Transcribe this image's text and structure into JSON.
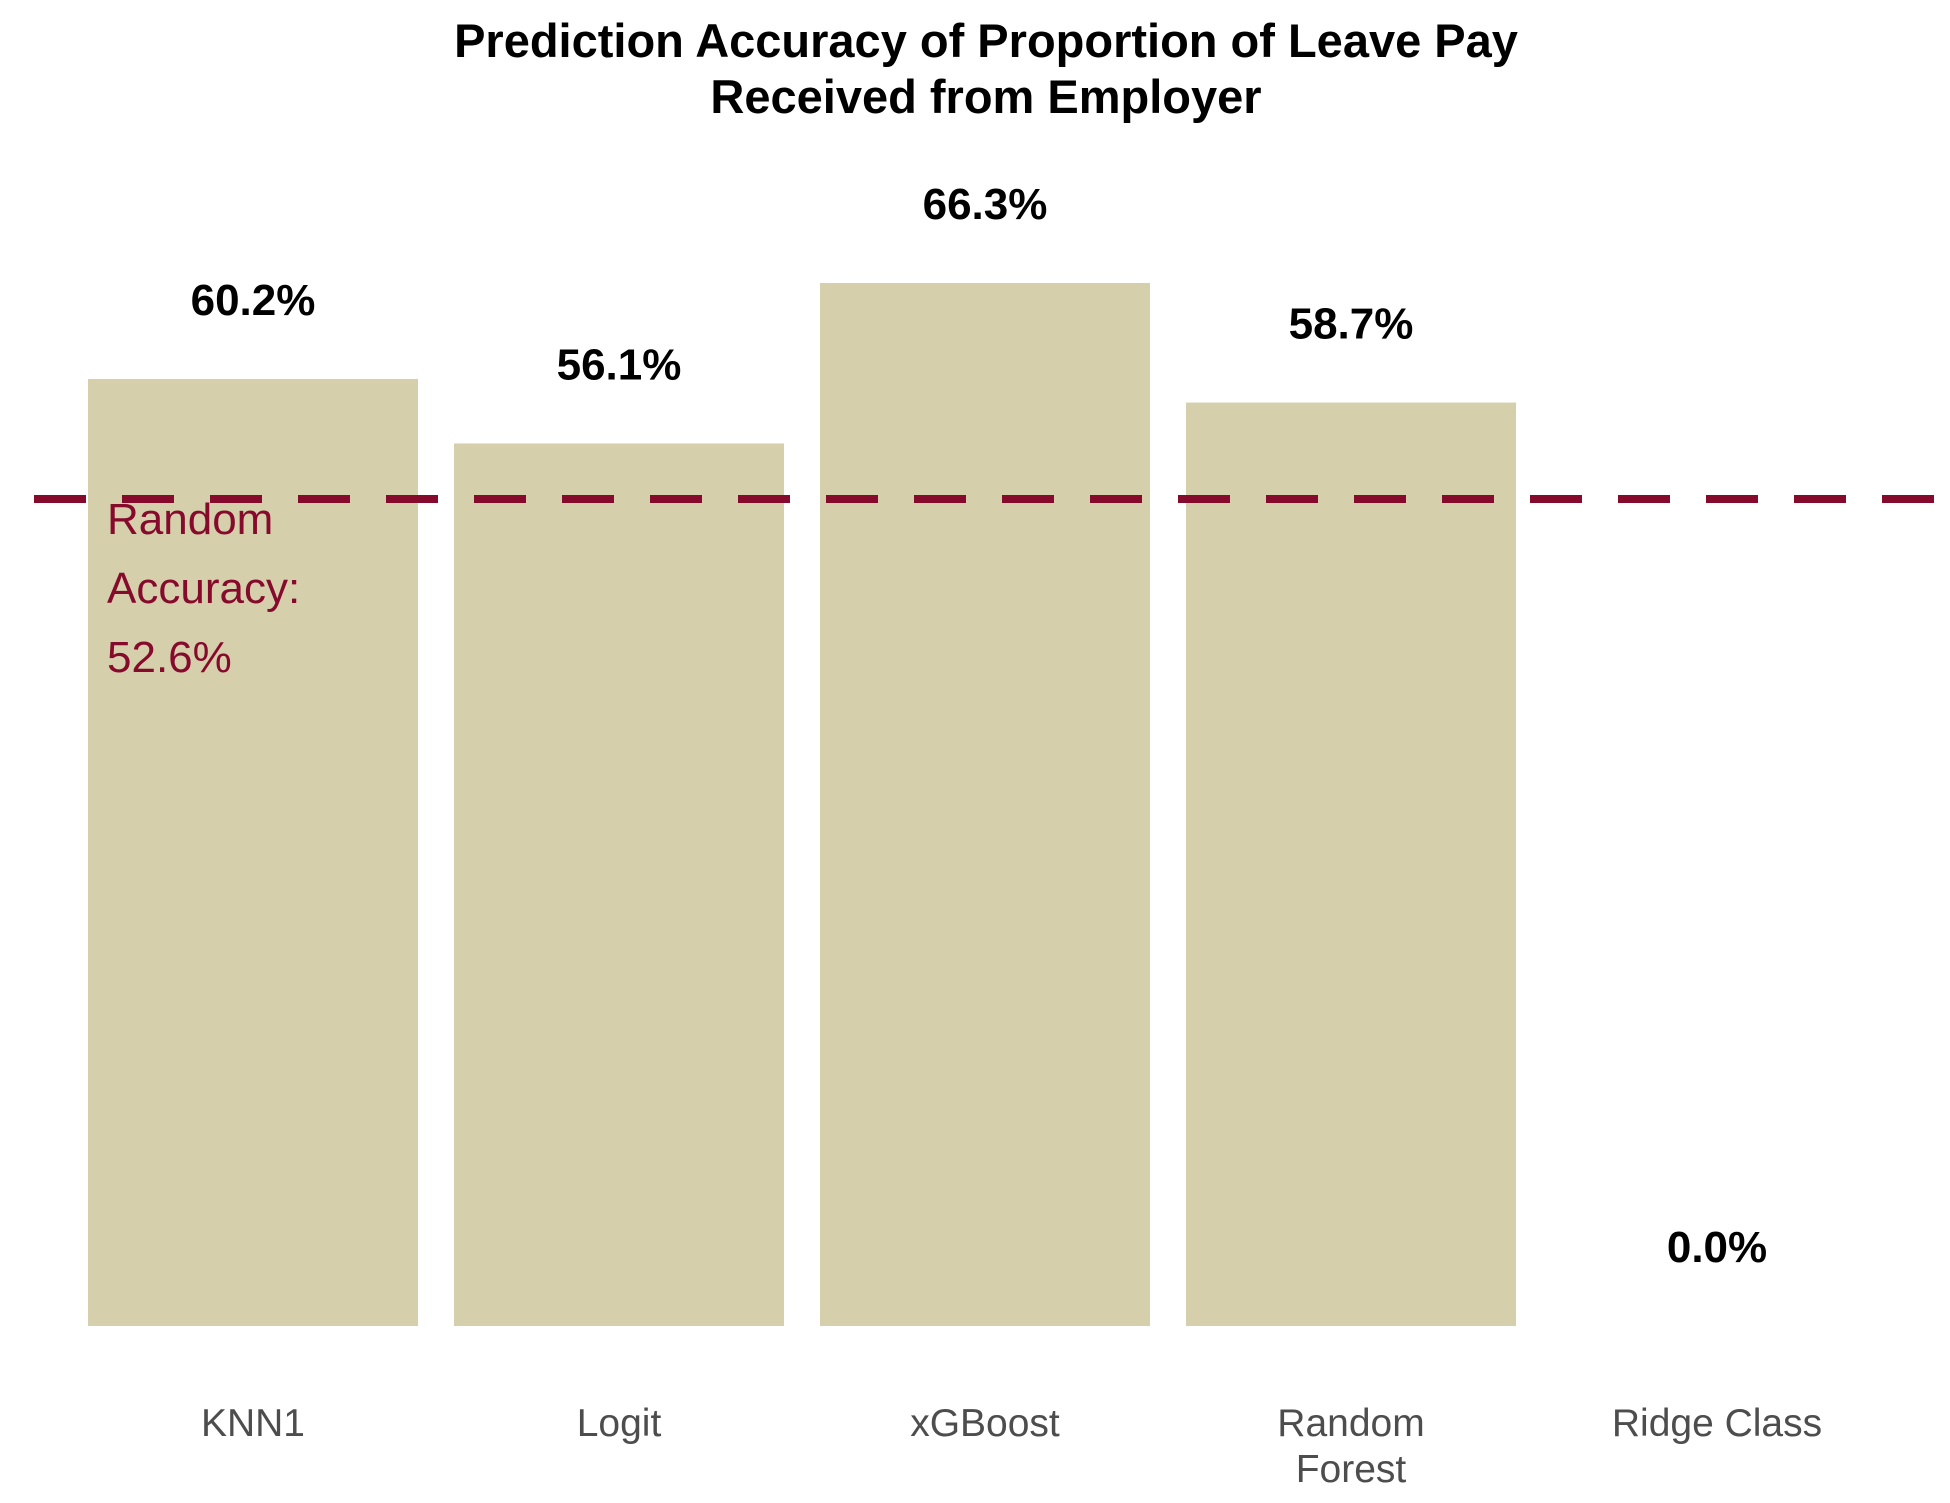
{
  "chart_data": {
    "type": "bar",
    "title": [
      "Prediction Accuracy of Proportion of Leave Pay",
      "Received from Employer"
    ],
    "xlabel": "",
    "ylabel": "",
    "ylim": [
      0,
      75
    ],
    "grid": false,
    "categories": [
      [
        "KNN1"
      ],
      [
        "Logit"
      ],
      [
        "xGBoost"
      ],
      [
        "Random",
        "Forest"
      ],
      [
        "Ridge Class"
      ]
    ],
    "values": [
      60.2,
      56.1,
      66.3,
      58.7,
      0.0
    ],
    "value_labels": [
      "60.2%",
      "56.1%",
      "66.3%",
      "58.7%",
      "0.0%"
    ],
    "reference_line": {
      "value": 52.6,
      "style": "dashed",
      "label_lines": [
        "Random",
        "Accuracy:",
        "52.6%"
      ]
    },
    "colors": {
      "bar": "#d5cfab",
      "reference": "#850a2c",
      "tick_text": "#4d4d4d",
      "label_text": "#000000"
    }
  }
}
